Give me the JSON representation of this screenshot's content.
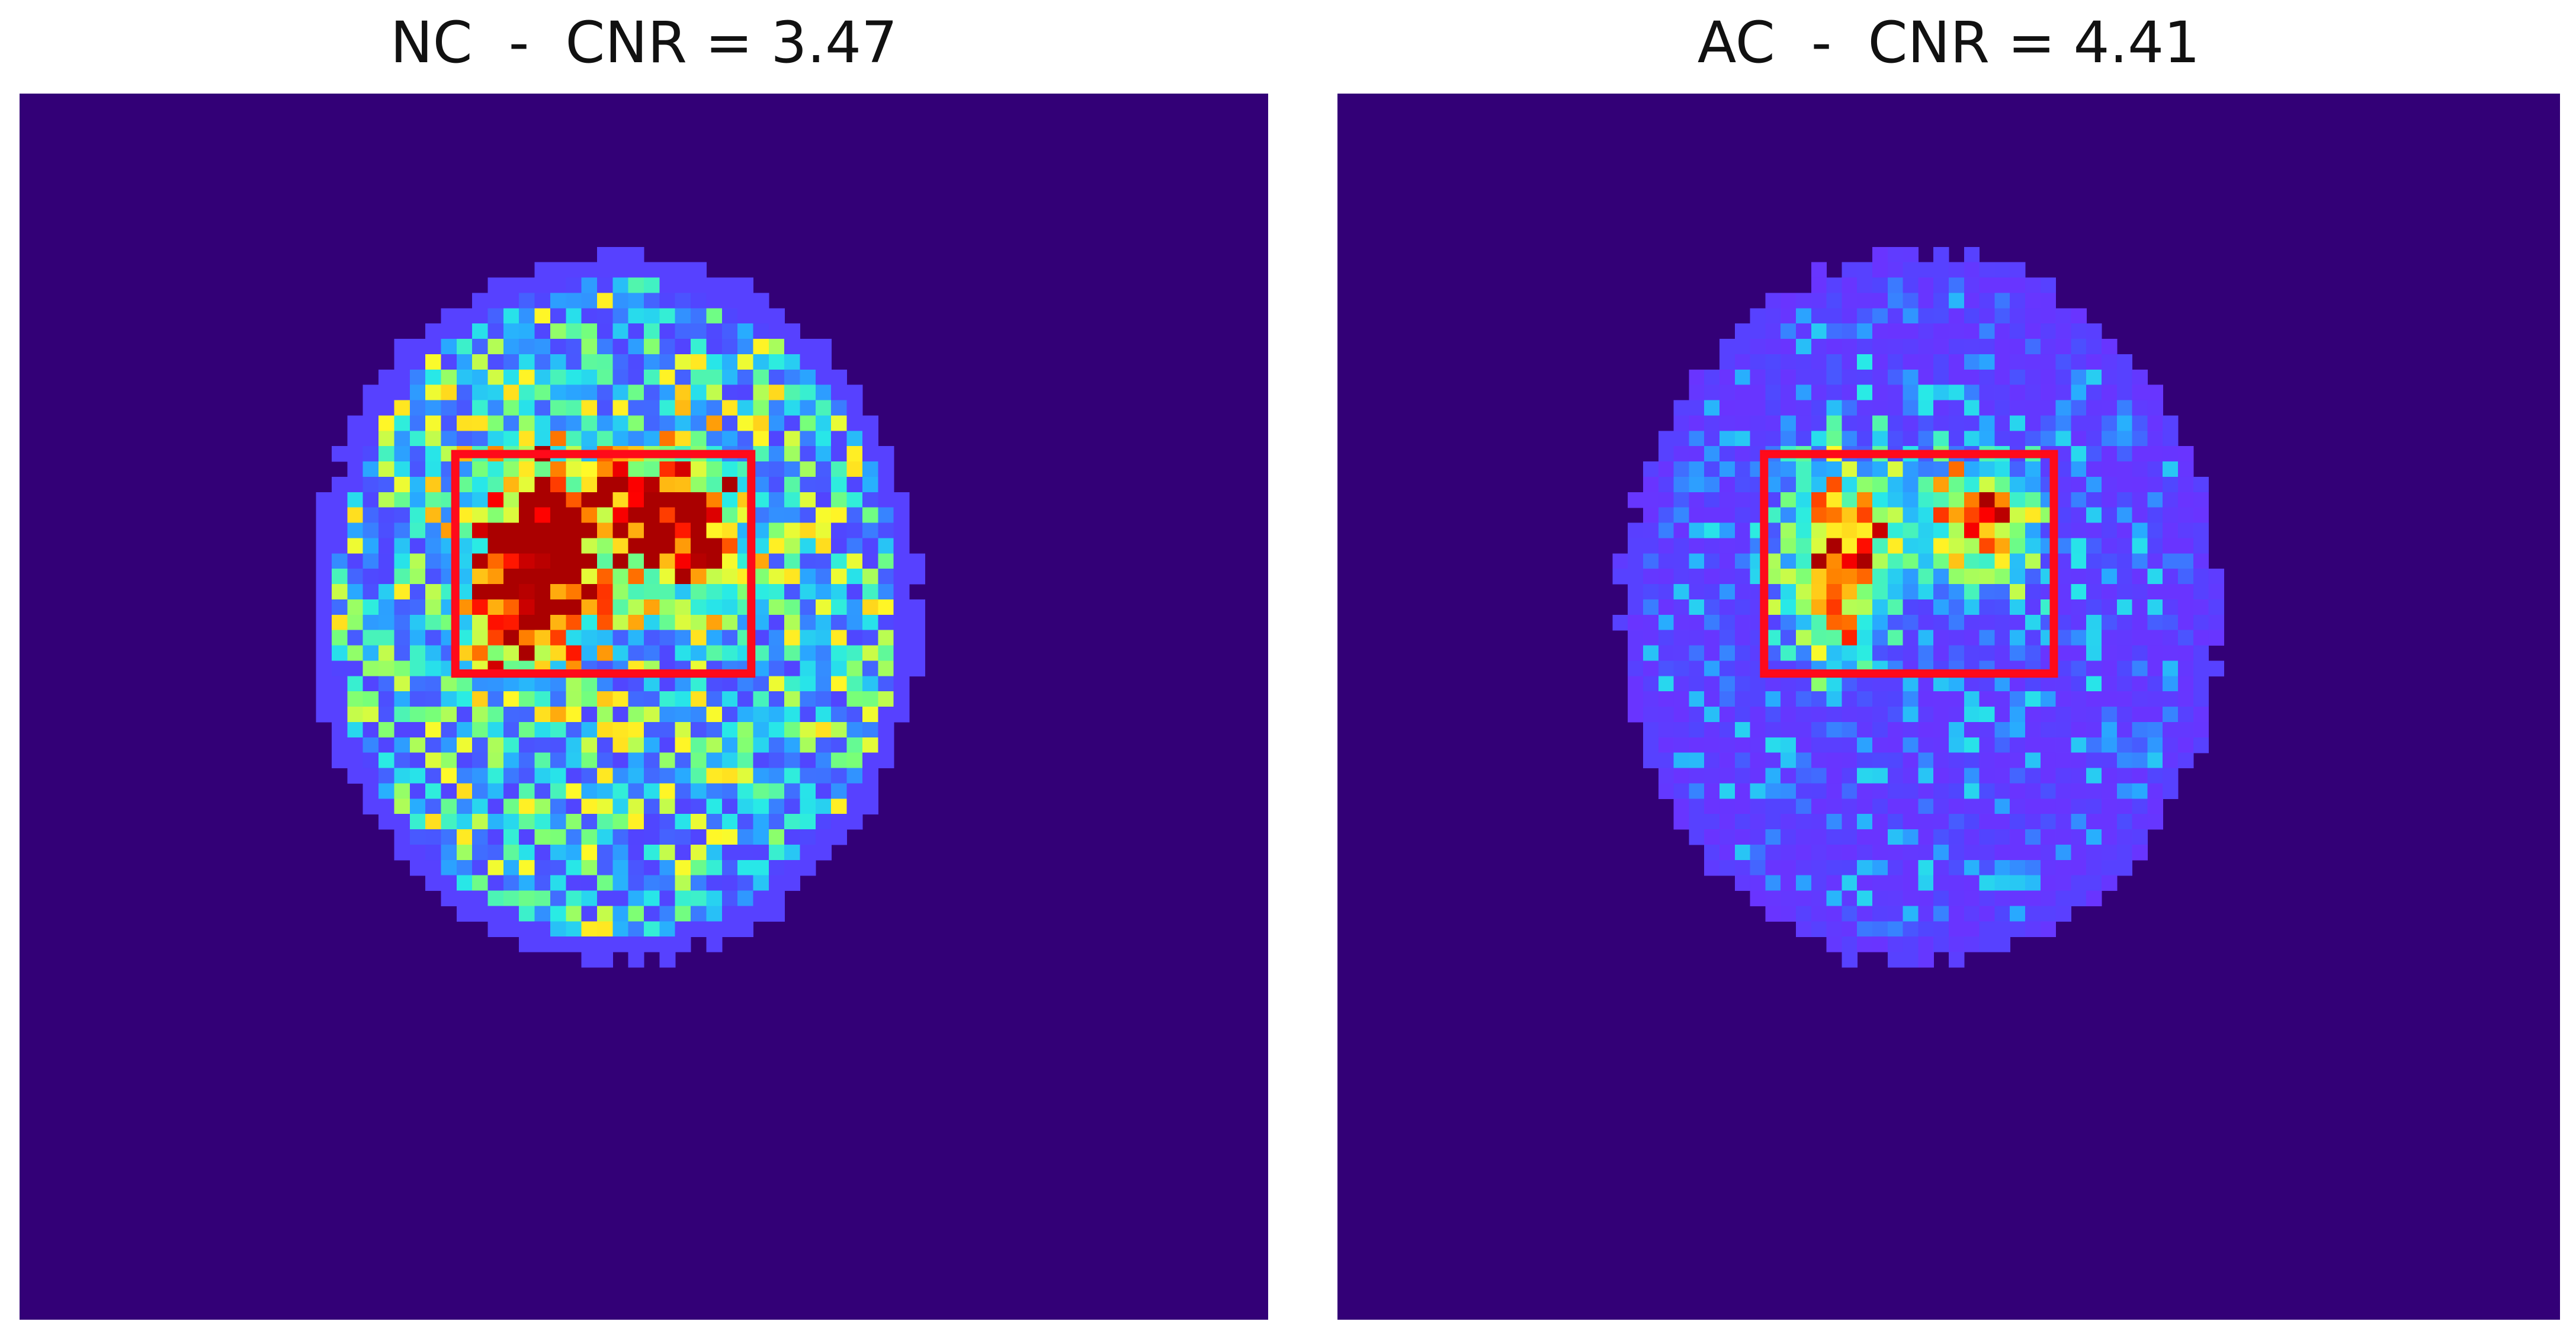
{
  "panels": [
    {
      "title": "NC  -  CNR = 3.47"
    },
    {
      "title": "AC  -  CNR = 4.41"
    }
  ]
}
